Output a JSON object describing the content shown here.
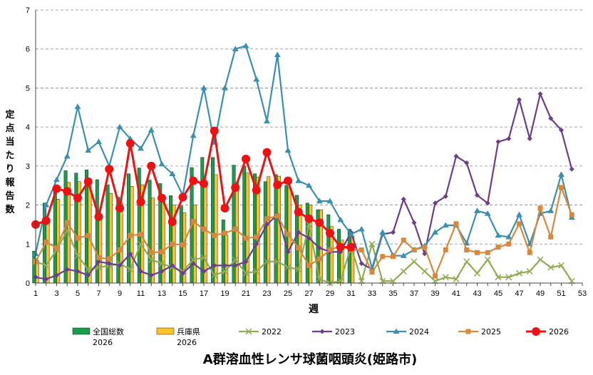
{
  "chart_data": {
    "type": "bar+line",
    "title": "A群溶血性レンサ球菌咽頭炎(姫路市)",
    "xlabel": "週",
    "ylabel": "定点当たり報告数",
    "ylim": [
      0,
      7
    ],
    "yticks": [
      0,
      1,
      2,
      3,
      4,
      5,
      6,
      7
    ],
    "xlim": [
      1,
      53
    ],
    "xticks": [
      1,
      3,
      5,
      7,
      9,
      11,
      13,
      15,
      17,
      19,
      21,
      23,
      25,
      27,
      29,
      31,
      33,
      35,
      37,
      39,
      41,
      43,
      45,
      47,
      49,
      51,
      53
    ],
    "grid": true,
    "legend_position": "bottom",
    "bar_series": [
      {
        "name": "全国総数\n2026",
        "color": "#1a9c4a",
        "x": [
          1,
          2,
          3,
          4,
          5,
          6,
          7,
          8,
          9,
          10,
          11,
          12,
          13,
          14,
          15,
          16,
          17,
          18,
          19,
          20,
          21,
          22,
          23,
          24,
          25,
          26,
          27,
          28,
          29,
          30,
          31
        ],
        "values": [
          0.82,
          2.05,
          2.4,
          2.88,
          2.82,
          2.9,
          2.65,
          2.52,
          2.2,
          2.8,
          2.95,
          2.64,
          2.55,
          2.24,
          1.98,
          2.96,
          3.22,
          3.22,
          1.62,
          3.02,
          3.0,
          2.8,
          2.6,
          2.78,
          2.5,
          2.25,
          2.05,
          1.88,
          1.75,
          1.38,
          1.38
        ]
      },
      {
        "name": "兵庫県\n2026",
        "color": "#ffc125",
        "x": [
          1,
          2,
          3,
          4,
          5,
          6,
          7,
          8,
          9,
          10,
          11,
          12,
          13,
          14,
          15,
          16,
          17,
          18,
          19,
          20,
          21,
          22,
          23,
          24,
          25,
          26,
          27,
          28,
          29,
          30,
          31
        ],
        "values": [
          0.58,
          1.62,
          2.15,
          2.58,
          2.6,
          2.52,
          1.75,
          2.3,
          2.05,
          2.48,
          2.52,
          2.18,
          2.1,
          2.0,
          1.8,
          2.0,
          2.5,
          2.78,
          1.22,
          2.58,
          2.82,
          2.72,
          2.73,
          2.74,
          2.45,
          2.0,
          2.0,
          1.88,
          1.45,
          1.1,
          1.2
        ]
      }
    ],
    "line_series": [
      {
        "name": "2022",
        "color": "#8fac50",
        "marker": "x",
        "x": [
          1,
          2,
          3,
          4,
          5,
          6,
          7,
          8,
          9,
          10,
          11,
          12,
          13,
          14,
          15,
          16,
          17,
          18,
          19,
          20,
          21,
          22,
          23,
          24,
          25,
          26,
          27,
          28,
          29,
          30,
          31,
          32,
          33,
          34,
          35,
          36,
          37,
          38,
          39,
          40,
          41,
          42,
          43,
          44,
          45,
          46,
          47,
          48,
          49,
          50,
          51,
          52
        ],
        "values": [
          0.55,
          0.45,
          0.85,
          1.35,
          0.7,
          0.35,
          0.4,
          0.45,
          0.5,
          0.35,
          1.0,
          0.6,
          0.5,
          0.4,
          0.3,
          0.6,
          0.65,
          0.2,
          0.3,
          0.6,
          0.25,
          0.3,
          0.55,
          0.55,
          0.4,
          0.35,
          1.5,
          0.1,
          0.0,
          0.05,
          0.95,
          0.05,
          1.0,
          0.05,
          0.05,
          0.3,
          0.55,
          0.3,
          0.05,
          0.15,
          0.1,
          0.55,
          0.25,
          0.6,
          0.15,
          0.15,
          0.25,
          0.3,
          0.6,
          0.4,
          0.45,
          0.05
        ]
      },
      {
        "name": "2023",
        "color": "#6a3d8f",
        "marker": "diamond",
        "x": [
          1,
          2,
          3,
          4,
          5,
          6,
          7,
          8,
          9,
          10,
          11,
          12,
          13,
          14,
          15,
          16,
          17,
          18,
          19,
          20,
          21,
          22,
          23,
          24,
          25,
          26,
          27,
          28,
          29,
          30,
          31,
          32,
          33,
          34,
          35,
          36,
          37,
          38,
          39,
          40,
          41,
          42,
          43,
          44,
          45,
          46,
          47,
          48,
          49,
          50,
          51,
          52
        ],
        "values": [
          0.15,
          0.1,
          0.2,
          0.35,
          0.3,
          0.2,
          0.55,
          0.5,
          0.45,
          0.75,
          0.3,
          0.2,
          0.3,
          0.45,
          0.25,
          0.5,
          0.3,
          0.45,
          0.45,
          0.45,
          0.55,
          1.0,
          1.5,
          1.75,
          0.8,
          1.3,
          1.15,
          0.9,
          0.8,
          0.8,
          1.3,
          0.5,
          0.35,
          1.25,
          1.3,
          2.15,
          1.55,
          0.75,
          2.05,
          2.22,
          3.25,
          3.08,
          2.25,
          2.05,
          3.62,
          3.7,
          4.7,
          3.7,
          4.85,
          4.22,
          3.92,
          2.92
        ]
      },
      {
        "name": "2024",
        "color": "#3a8fb0",
        "marker": "triangle",
        "x": [
          1,
          2,
          3,
          4,
          5,
          6,
          7,
          8,
          9,
          10,
          11,
          12,
          13,
          14,
          15,
          16,
          17,
          18,
          19,
          20,
          21,
          22,
          23,
          24,
          25,
          26,
          27,
          28,
          29,
          30,
          31,
          32,
          33,
          34,
          35,
          36,
          37,
          38,
          39,
          40,
          41,
          42,
          43,
          44,
          45,
          46,
          47,
          48,
          49,
          50,
          51,
          52
        ],
        "values": [
          0.75,
          2.0,
          2.65,
          3.25,
          4.52,
          3.4,
          3.62,
          3.0,
          4.0,
          3.7,
          3.45,
          3.92,
          3.05,
          2.8,
          2.25,
          3.78,
          5.0,
          3.6,
          5.0,
          6.0,
          6.08,
          5.22,
          4.15,
          5.85,
          3.4,
          2.62,
          2.5,
          2.1,
          2.1,
          1.62,
          1.25,
          1.38,
          0.38,
          1.3,
          0.7,
          0.7,
          0.85,
          0.95,
          1.3,
          1.48,
          1.48,
          1.02,
          1.85,
          1.78,
          1.22,
          1.18,
          1.75,
          1.0,
          1.78,
          1.85,
          2.78,
          1.68
        ]
      },
      {
        "name": "2025",
        "color": "#d9883a",
        "marker": "square",
        "x": [
          1,
          2,
          3,
          4,
          5,
          6,
          7,
          8,
          9,
          10,
          11,
          12,
          13,
          14,
          15,
          16,
          17,
          18,
          19,
          20,
          21,
          22,
          23,
          24,
          25,
          26,
          27,
          28,
          29,
          30,
          31,
          32,
          33,
          34,
          35,
          36,
          37,
          38,
          39,
          40,
          41,
          42,
          43,
          44,
          45,
          46,
          47,
          48,
          49,
          50,
          51,
          52
        ],
        "values": [
          0.55,
          1.05,
          0.9,
          1.55,
          1.15,
          1.22,
          0.65,
          0.62,
          0.85,
          1.22,
          1.25,
          0.78,
          0.8,
          1.0,
          0.98,
          1.58,
          1.38,
          1.22,
          1.28,
          1.38,
          1.15,
          1.18,
          1.65,
          1.72,
          1.25,
          0.9,
          0.45,
          0.62,
          0.85,
          0.95,
          0.85,
          0.85,
          0.28,
          0.68,
          0.68,
          1.1,
          0.85,
          0.92,
          0.18,
          0.85,
          1.52,
          0.85,
          0.78,
          0.78,
          0.92,
          1.0,
          1.52,
          0.78,
          1.92,
          1.18,
          2.45,
          1.75
        ]
      },
      {
        "name": "2026",
        "color": "#ee1111",
        "marker": "circle",
        "x": [
          1,
          2,
          3,
          4,
          5,
          6,
          7,
          8,
          9,
          10,
          11,
          12,
          13,
          14,
          15,
          16,
          17,
          18,
          19,
          20,
          21,
          22,
          23,
          24,
          25,
          26,
          27,
          28,
          29,
          30,
          31
        ],
        "values": [
          1.5,
          1.6,
          2.42,
          2.35,
          2.18,
          2.6,
          1.7,
          2.92,
          1.92,
          3.58,
          2.08,
          3.0,
          2.18,
          1.57,
          2.2,
          2.62,
          2.55,
          3.9,
          1.92,
          2.45,
          3.18,
          2.38,
          3.35,
          2.52,
          2.62,
          1.82,
          1.65,
          1.55,
          1.28,
          0.92,
          0.92
        ]
      }
    ]
  }
}
